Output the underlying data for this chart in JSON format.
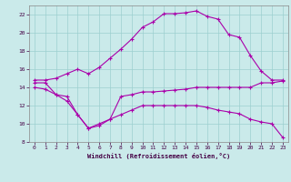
{
  "xlabel": "Windchill (Refroidissement éolien,°C)",
  "background_color": "#caeaea",
  "grid_color": "#9dcfcf",
  "line_color": "#aa00aa",
  "xlim": [
    -0.5,
    23.5
  ],
  "ylim": [
    8,
    23
  ],
  "yticks": [
    8,
    10,
    12,
    14,
    16,
    18,
    20,
    22
  ],
  "xticks": [
    0,
    1,
    2,
    3,
    4,
    5,
    6,
    7,
    8,
    9,
    10,
    11,
    12,
    13,
    14,
    15,
    16,
    17,
    18,
    19,
    20,
    21,
    22,
    23
  ],
  "line1_x": [
    0,
    1,
    2,
    3,
    4,
    5,
    6,
    7,
    8,
    9,
    10,
    11,
    12,
    13,
    14,
    15,
    16,
    17,
    18,
    19,
    20,
    21,
    22,
    23
  ],
  "line1_y": [
    14.8,
    14.8,
    15.0,
    15.5,
    16.0,
    15.5,
    16.2,
    17.2,
    18.2,
    19.3,
    20.6,
    21.2,
    22.1,
    22.1,
    22.2,
    22.4,
    21.8,
    21.5,
    19.8,
    19.5,
    17.5,
    15.8,
    14.8,
    14.8
  ],
  "line2_x": [
    0,
    1,
    2,
    3,
    4,
    5,
    6,
    7,
    8,
    9,
    10,
    11,
    12,
    13,
    14,
    15,
    16,
    17,
    18,
    19,
    20,
    21,
    22,
    23
  ],
  "line2_y": [
    14.5,
    14.5,
    13.2,
    13.0,
    11.0,
    9.5,
    9.8,
    10.5,
    13.0,
    13.2,
    13.5,
    13.5,
    13.6,
    13.7,
    13.8,
    14.0,
    14.0,
    14.0,
    14.0,
    14.0,
    14.0,
    14.5,
    14.5,
    14.7
  ],
  "line3_x": [
    0,
    1,
    2,
    3,
    4,
    5,
    6,
    7,
    8,
    9,
    10,
    11,
    12,
    13,
    14,
    15,
    16,
    17,
    18,
    19,
    20,
    21,
    22,
    23
  ],
  "line3_y": [
    14.0,
    13.8,
    13.2,
    12.5,
    11.0,
    9.5,
    10.0,
    10.5,
    11.0,
    11.5,
    12.0,
    12.0,
    12.0,
    12.0,
    12.0,
    12.0,
    11.8,
    11.5,
    11.3,
    11.1,
    10.5,
    10.2,
    10.0,
    8.5
  ]
}
